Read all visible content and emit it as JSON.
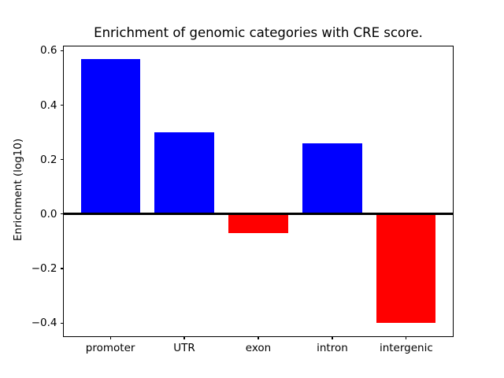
{
  "chart_data": {
    "type": "bar",
    "title": "Enrichment of genomic categories with CRE score.",
    "xlabel": "",
    "ylabel": "Enrichment (log10)",
    "categories": [
      "promoter",
      "UTR",
      "exon",
      "intron",
      "intergenic"
    ],
    "values": [
      0.57,
      0.3,
      -0.07,
      0.26,
      -0.4
    ],
    "positive_color": "#0000ff",
    "negative_color": "#ff0000",
    "ylim": [
      -0.45,
      0.62
    ],
    "xlim": [
      -0.64,
      4.64
    ],
    "bar_width": 0.8,
    "grid": false,
    "yticks": [
      {
        "value": 0.6,
        "label": "0.6"
      },
      {
        "value": 0.4,
        "label": "0.4"
      },
      {
        "value": 0.2,
        "label": "0.2"
      },
      {
        "value": 0.0,
        "label": "0.0"
      },
      {
        "value": -0.2,
        "label": "−0.2"
      },
      {
        "value": -0.4,
        "label": "−0.4"
      }
    ],
    "zero_line_color": "#000000",
    "axis_color": "#000000"
  }
}
